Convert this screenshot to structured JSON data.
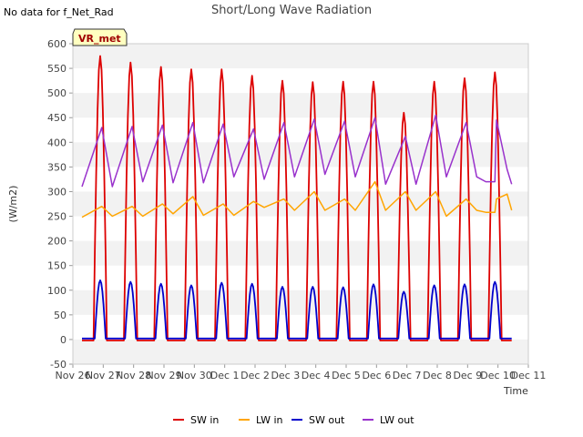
{
  "header": {
    "note": "No data for f_Net_Rad"
  },
  "chart_data": {
    "type": "line",
    "title": "Short/Long Wave Radiation",
    "ylabel": "(W/m2)",
    "xlabel": "Time",
    "badge": "VR_met",
    "ylim": [
      -50,
      600
    ],
    "yticks": [
      -50,
      0,
      50,
      100,
      150,
      200,
      250,
      300,
      350,
      400,
      450,
      500,
      550,
      600
    ],
    "xlim": [
      0,
      15
    ],
    "xtick_labels": [
      "Nov 26",
      "Nov 27",
      "Nov 28",
      "Nov 29",
      "Nov 30",
      "Dec 1",
      "Dec 2",
      "Dec 3",
      "Dec 4",
      "Dec 5",
      "Dec 6",
      "Dec 7",
      "Dec 8",
      "Dec 9",
      "Dec 10",
      "Dec 11"
    ],
    "grid": "horizontal bands",
    "legend_position": "bottom",
    "series": [
      {
        "name": "SW in",
        "color": "#dd0000",
        "night": -2,
        "x": [
          0.9,
          1.9,
          2.9,
          3.9,
          4.9,
          5.9,
          6.9,
          7.9,
          8.9,
          9.9,
          10.9,
          11.9,
          12.9,
          13.9
        ],
        "values": [
          575,
          562,
          553,
          548,
          548,
          535,
          525,
          522,
          523,
          523,
          460,
          523,
          530,
          542
        ]
      },
      {
        "name": "LW in",
        "color": "#ffa500",
        "x": [
          0.3,
          1.3,
          2.3,
          3.3,
          4.3,
          5.3,
          6.3,
          7.3,
          8.3,
          9.3,
          10.3,
          11.3,
          12.3,
          13.3,
          13.6,
          13.9,
          14.3,
          14.45
        ],
        "values": [
          248,
          250,
          250,
          255,
          252,
          252,
          268,
          262,
          262,
          262,
          262,
          262,
          250,
          262,
          258,
          258,
          295,
          262
        ],
        "peak_x": [
          0.95,
          1.95,
          2.95,
          3.95,
          4.95,
          5.95,
          6.95,
          7.95,
          8.95,
          9.95,
          10.95,
          11.95,
          12.95,
          13.95
        ],
        "peak_values": [
          270,
          270,
          275,
          290,
          275,
          280,
          285,
          300,
          285,
          320,
          300,
          300,
          285,
          285
        ]
      },
      {
        "name": "SW out",
        "color": "#0000cc",
        "night": 2,
        "x": [
          0.9,
          1.9,
          2.9,
          3.9,
          4.9,
          5.9,
          6.9,
          7.9,
          8.9,
          9.9,
          10.9,
          11.9,
          12.9,
          13.9
        ],
        "values": [
          120,
          117,
          113,
          110,
          115,
          113,
          107,
          107,
          106,
          112,
          97,
          110,
          112,
          117
        ]
      },
      {
        "name": "LW out",
        "color": "#9932cc",
        "x": [
          0.3,
          1.3,
          2.3,
          3.3,
          4.3,
          5.3,
          6.3,
          7.3,
          8.3,
          9.3,
          10.3,
          11.3,
          12.3,
          13.3,
          13.6,
          13.9,
          14.3,
          14.45
        ],
        "values": [
          310,
          310,
          320,
          318,
          318,
          330,
          325,
          330,
          335,
          330,
          315,
          315,
          330,
          330,
          320,
          320,
          345,
          315
        ],
        "peak_x": [
          0.95,
          1.95,
          2.95,
          3.95,
          4.95,
          5.95,
          6.95,
          7.95,
          8.95,
          9.95,
          10.95,
          11.95,
          12.95,
          13.95
        ],
        "peak_values": [
          430,
          432,
          435,
          440,
          437,
          427,
          440,
          447,
          443,
          450,
          412,
          455,
          440,
          445
        ]
      }
    ]
  }
}
